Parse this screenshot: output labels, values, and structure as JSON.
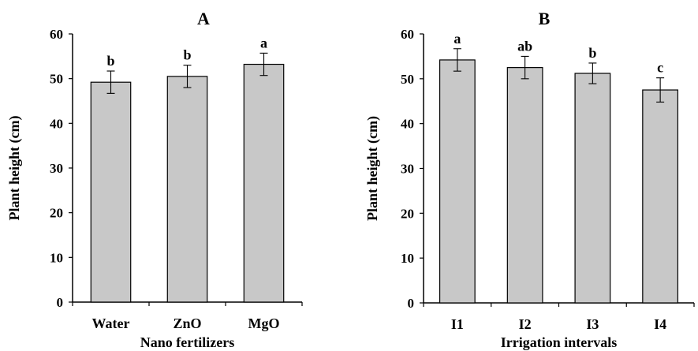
{
  "chart_data": [
    {
      "type": "bar",
      "title": "A",
      "xlabel": "Nano fertilizers",
      "ylabel": "Plant height (cm)",
      "categories": [
        "Water",
        "ZnO",
        "MgO"
      ],
      "values": [
        49.2,
        50.5,
        53.2
      ],
      "errors": [
        2.5,
        2.5,
        2.5
      ],
      "letters": [
        "b",
        "b",
        "a"
      ],
      "ylim": [
        0,
        60
      ],
      "yticks": [
        "0",
        "10",
        "20",
        "30",
        "40",
        "50",
        "60"
      ],
      "grid": false,
      "bar_color": "#c8c8c8"
    },
    {
      "type": "bar",
      "title": "B",
      "xlabel": "Irrigation intervals",
      "ylabel": "Plant height (cm)",
      "categories": [
        "I1",
        "I2",
        "I3",
        "I4"
      ],
      "values": [
        54.2,
        52.5,
        51.2,
        47.5
      ],
      "errors": [
        2.5,
        2.5,
        2.3,
        2.7
      ],
      "letters": [
        "a",
        "ab",
        "b",
        "c"
      ],
      "ylim": [
        0,
        60
      ],
      "yticks": [
        "0",
        "10",
        "20",
        "30",
        "40",
        "50",
        "60"
      ],
      "grid": false,
      "bar_color": "#c8c8c8"
    }
  ]
}
